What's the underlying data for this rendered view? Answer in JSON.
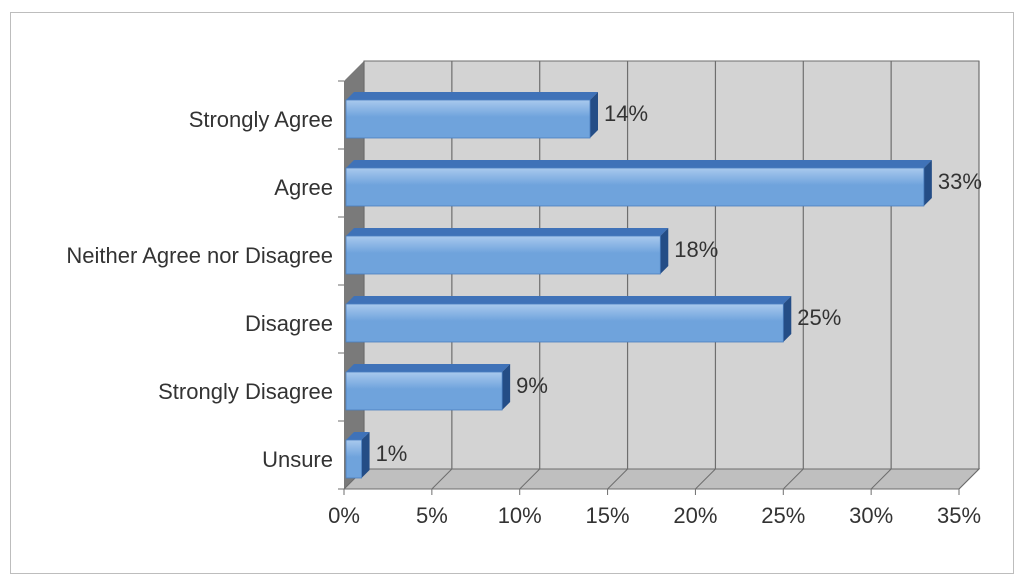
{
  "chart_data": {
    "type": "bar",
    "orientation": "horizontal",
    "style": "3d",
    "categories": [
      "Strongly Agree",
      "Agree",
      "Neither Agree nor Disagree",
      "Disagree",
      "Strongly Disagree",
      "Unsure"
    ],
    "values": [
      14,
      33,
      18,
      25,
      9,
      1
    ],
    "value_labels": [
      "14%",
      "33%",
      "18%",
      "25%",
      "9%",
      "1%"
    ],
    "x_ticks": [
      "0%",
      "5%",
      "10%",
      "15%",
      "20%",
      "25%",
      "30%",
      "35%"
    ],
    "xlim": [
      0,
      35
    ],
    "grid": true,
    "legend": "none",
    "title": "",
    "xlabel": "",
    "ylabel": ""
  },
  "colors": {
    "bar_face": "#6fa3dc",
    "bar_highlight": "#a9c9ee",
    "bar_top": "#3f72b8",
    "bar_side": "#244d86",
    "plot_back": "#d3d3d3",
    "plot_floor": "#bfbfbf",
    "plot_left_wall": "#7a7a7a",
    "grid": "#6e6e6e"
  }
}
